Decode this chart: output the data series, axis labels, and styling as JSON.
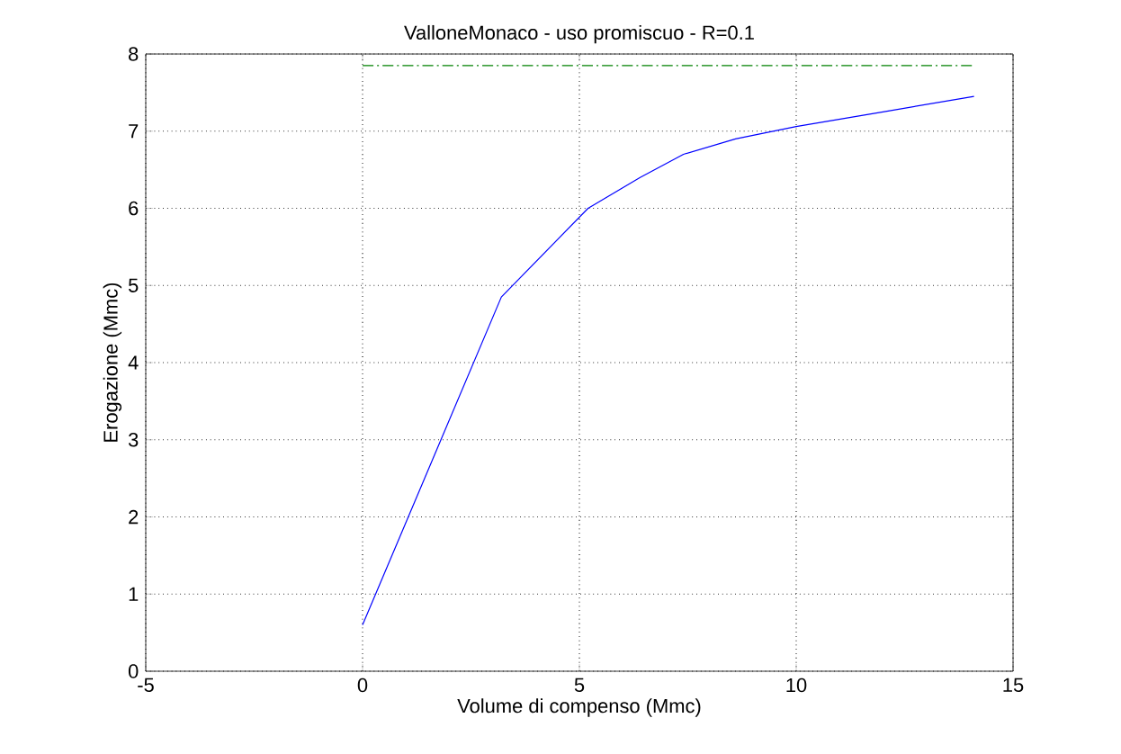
{
  "chart_data": {
    "type": "line",
    "title": "ValloneMonaco  -  uso promiscuo  -   R=0.1",
    "xlabel": "Volume di compenso (Mmc)",
    "ylabel": "Erogazione (Mmc)",
    "xlim": [
      -5,
      15
    ],
    "xticks": [
      -5,
      0,
      5,
      10,
      15
    ],
    "ylim": [
      0,
      8
    ],
    "yticks": [
      0,
      1,
      2,
      3,
      4,
      5,
      6,
      7,
      8
    ],
    "grid": true,
    "series": [
      {
        "color": "#0000ff",
        "line_style": "solid",
        "x": [
          0,
          3.2,
          5.2,
          6.4,
          7.4,
          8.6,
          10,
          12,
          14.1
        ],
        "values": [
          0.6,
          4.85,
          6.0,
          6.4,
          6.7,
          6.9,
          7.06,
          7.25,
          7.45
        ]
      },
      {
        "color": "#008000",
        "line_style": "dashed",
        "x": [
          0,
          14.05
        ],
        "values": [
          7.85,
          7.85
        ]
      }
    ]
  }
}
